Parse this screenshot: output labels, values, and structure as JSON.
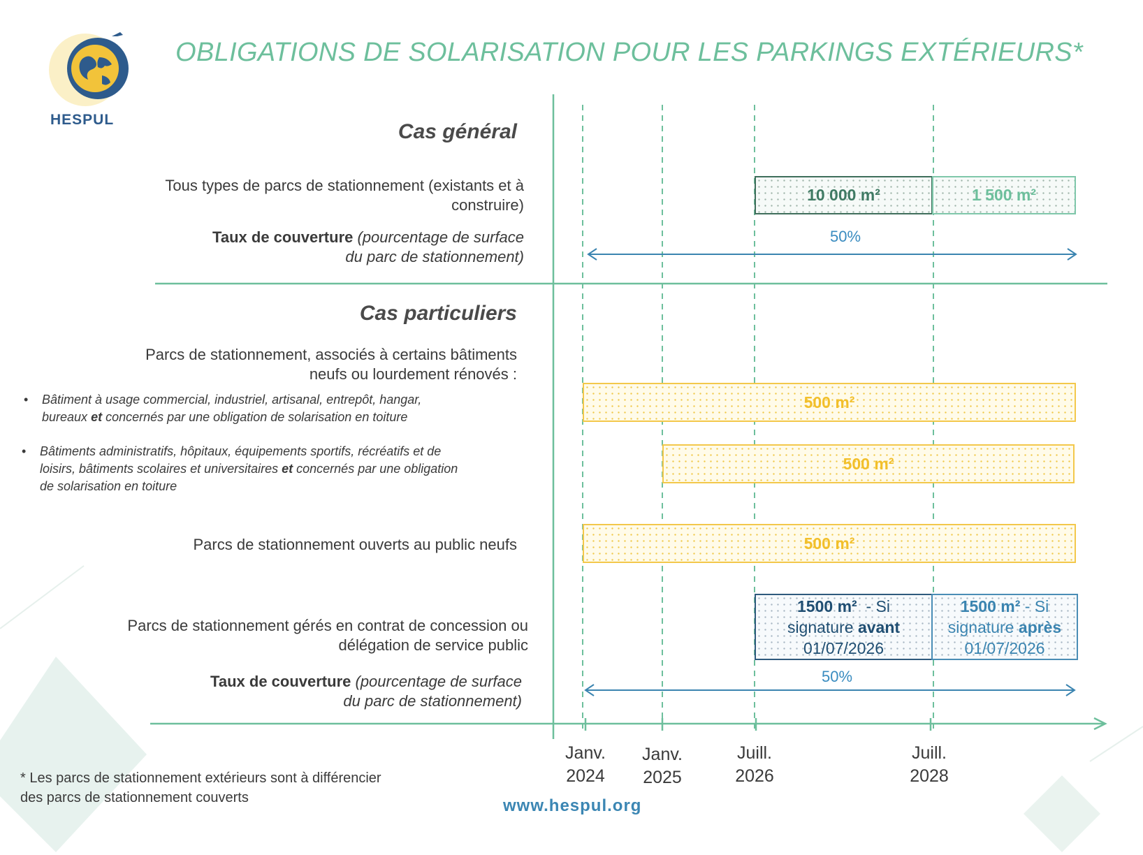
{
  "title": "OBLIGATIONS DE SOLARISATION POUR LES PARKINGS EXTÉRIEURS*",
  "logo": {
    "text": "HESPUL"
  },
  "colors": {
    "green": "#6dbf9c",
    "yellow": "#f3c84b",
    "blue": "#3a84b0",
    "navy": "#2e5b8c"
  },
  "general": {
    "heading": "Cas général",
    "row_label_1": "Tous types de parcs de stationnement (existants et à",
    "row_label_2": "construire)",
    "bar_a": "10 000 m²",
    "bar_b": "1 500 m²",
    "rate_bold": "Taux de couverture",
    "rate_italic_1": "(pourcentage de surface",
    "rate_italic_2": "du parc de stationnement)",
    "rate_value": "50%"
  },
  "particular": {
    "heading": "Cas particuliers",
    "intro_1": "Parcs de stationnement, associés à certains bâtiments",
    "intro_2": "neufs ou lourdement rénovés :",
    "bullet_1_a": "Bâtiment à usage commercial, industriel, artisanal, entrepôt, hangar,",
    "bullet_1_b_pre": "bureaux ",
    "bullet_1_b_bold": "et",
    "bullet_1_b_post": " concernés par une obligation de solarisation en toiture",
    "bullet_1_bar": "500 m²",
    "bullet_2_a": "Bâtiments administratifs, hôpitaux, équipements sportifs, récréatifs et de",
    "bullet_2_b_pre": "loisirs, bâtiments scolaires et universitaires ",
    "bullet_2_b_bold": "et",
    "bullet_2_b_post": " concernés par une obligation",
    "bullet_2_c": "de solarisation en toiture",
    "bullet_2_bar": "500 m²",
    "public_label": "Parcs de stationnement ouverts au public neufs",
    "public_bar": "500 m²",
    "concession_label_1": "Parcs de stationnement gérés en contrat de concession ou",
    "concession_label_2": "délégation de service public",
    "concession_a_1": "1500 m²",
    "concession_a_1b": "  - Si",
    "concession_a_2": "signature ",
    "concession_a_2b": "avant",
    "concession_a_3": "01/07/2026",
    "concession_b_1": "1500 m²",
    "concession_b_1b": " - Si",
    "concession_b_2": "signature ",
    "concession_b_2b": "après",
    "concession_b_3": "01/07/2026",
    "rate_bold": "Taux de couverture",
    "rate_italic_1": "(pourcentage de surface",
    "rate_italic_2": "du parc de stationnement)",
    "rate_value": "50%"
  },
  "timeline": {
    "ticks": [
      {
        "line1": "Janv.",
        "line2": "2024"
      },
      {
        "line1": "Janv.",
        "line2": "2025"
      },
      {
        "line1": "Juill.",
        "line2": "2026"
      },
      {
        "line1": "Juill.",
        "line2": "2028"
      }
    ]
  },
  "footnote_1": "* Les parcs de stationnement extérieurs sont à différencier",
  "footnote_2": "des parcs de stationnement couverts",
  "url": "www.hespul.org"
}
